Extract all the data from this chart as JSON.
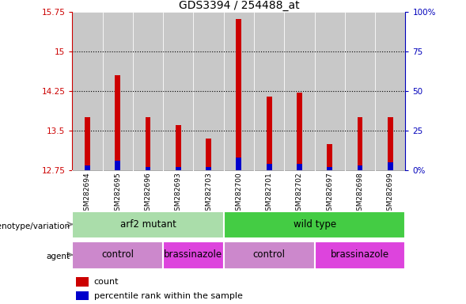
{
  "title": "GDS3394 / 254488_at",
  "samples": [
    "GSM282694",
    "GSM282695",
    "GSM282696",
    "GSM282693",
    "GSM282703",
    "GSM282700",
    "GSM282701",
    "GSM282702",
    "GSM282697",
    "GSM282698",
    "GSM282699"
  ],
  "red_values": [
    13.75,
    14.55,
    13.75,
    13.6,
    13.35,
    15.62,
    14.15,
    14.22,
    13.25,
    13.75,
    13.75
  ],
  "blue_values": [
    3,
    6,
    2,
    2,
    2,
    8,
    4,
    4,
    2,
    3,
    5
  ],
  "ylim_left": [
    12.75,
    15.75
  ],
  "ylim_right": [
    0,
    100
  ],
  "yticks_left": [
    12.75,
    13.5,
    14.25,
    15.0,
    15.75
  ],
  "yticks_right": [
    0,
    25,
    50,
    75,
    100
  ],
  "ytick_labels_left": [
    "12.75",
    "13.5",
    "14.25",
    "15",
    "15.75"
  ],
  "ytick_labels_right": [
    "0%",
    "25",
    "50",
    "75",
    "100%"
  ],
  "baseline": 12.75,
  "bar_width": 0.18,
  "red_color": "#cc0000",
  "blue_color": "#0000cc",
  "plot_bg": "#ffffff",
  "cell_bg": "#c8c8c8",
  "genotype_row": [
    {
      "label": "arf2 mutant",
      "start": 0,
      "end": 5,
      "color": "#aaddaa"
    },
    {
      "label": "wild type",
      "start": 5,
      "end": 11,
      "color": "#44cc44"
    }
  ],
  "agent_row": [
    {
      "label": "control",
      "start": 0,
      "end": 3,
      "color": "#cc88cc"
    },
    {
      "label": "brassinazole",
      "start": 3,
      "end": 5,
      "color": "#dd44dd"
    },
    {
      "label": "control",
      "start": 5,
      "end": 8,
      "color": "#cc88cc"
    },
    {
      "label": "brassinazole",
      "start": 8,
      "end": 11,
      "color": "#dd44dd"
    }
  ],
  "legend_items": [
    {
      "label": "count",
      "color": "#cc0000"
    },
    {
      "label": "percentile rank within the sample",
      "color": "#0000cc"
    }
  ],
  "left_axis_color": "#cc0000",
  "right_axis_color": "#0000bb",
  "title_fontsize": 10,
  "tick_fontsize": 7.5,
  "sample_fontsize": 6.5,
  "row_fontsize": 8.5,
  "legend_fontsize": 8
}
